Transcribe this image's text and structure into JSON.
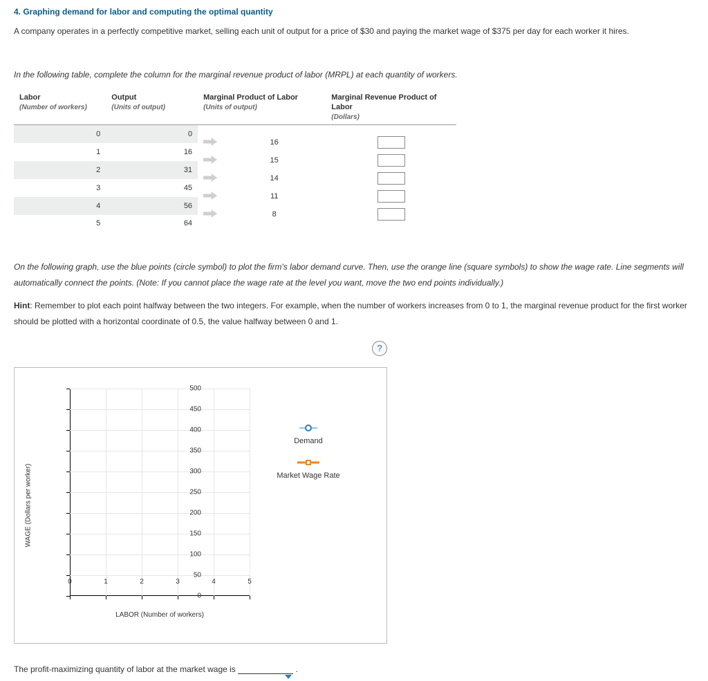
{
  "title": "4. Graphing demand for labor and computing the optimal quantity",
  "intro": "A company operates in a perfectly competitive market, selling each unit of output for a price of $30 and paying the market wage of $375 per day for each worker it hires.",
  "table_instruction": "In the following table, complete the column for the marginal revenue product of labor (MRPL) at each quantity of workers.",
  "table": {
    "headers": {
      "labor": "Labor",
      "labor_sub": "(Number of workers)",
      "output": "Output",
      "output_sub": "(Units of output)",
      "mpl": "Marginal Product of Labor",
      "mpl_sub": "(Units of output)",
      "mrpl": "Marginal Revenue Product of Labor",
      "mrpl_sub": "(Dollars)"
    },
    "rows": [
      {
        "labor": "0",
        "output": "0"
      },
      {
        "labor": "1",
        "output": "16"
      },
      {
        "labor": "2",
        "output": "31"
      },
      {
        "labor": "3",
        "output": "45"
      },
      {
        "labor": "4",
        "output": "56"
      },
      {
        "labor": "5",
        "output": "64"
      }
    ],
    "mpl_between": [
      "16",
      "15",
      "14",
      "11",
      "8"
    ]
  },
  "graph_instruction": "On the following graph, use the blue points (circle symbol) to plot the firm's labor demand curve. Then, use the orange line (square symbols) to show the wage rate. Line segments will automatically connect the points. (Note: If you cannot place the wage rate at the level you want, move the two end points individually.)",
  "hint_label": "Hint",
  "hint_text": ": Remember to plot each point halfway between the two integers. For example, when the number of workers increases from 0 to 1, the marginal revenue product for the first worker should be plotted with a horizontal coordinate of 0.5, the value halfway between 0 and 1.",
  "help_symbol": "?",
  "chart": {
    "type": "scatter-line",
    "y_title": "WAGE (Dollars per worker)",
    "x_title": "LABOR (Number of workers)",
    "ylim": [
      0,
      500
    ],
    "ytick_step": 50,
    "xlim": [
      0,
      5
    ],
    "xtick_step": 1,
    "grid_color": "#e6e6e6",
    "axis_color": "#000000",
    "background_color": "#ffffff",
    "y_ticks": [
      "0",
      "50",
      "100",
      "150",
      "200",
      "250",
      "300",
      "350",
      "400",
      "450",
      "500"
    ],
    "x_ticks": [
      "0",
      "1",
      "2",
      "3",
      "4",
      "5"
    ],
    "legend": {
      "demand": {
        "label": "Demand",
        "color": "#2a7ac0",
        "marker": "circle"
      },
      "wage": {
        "label": "Market Wage Rate",
        "color": "#e6872c",
        "marker": "square"
      }
    }
  },
  "final_sentence_a": "The profit-maximizing quantity of labor at the market wage is",
  "final_sentence_b": "."
}
